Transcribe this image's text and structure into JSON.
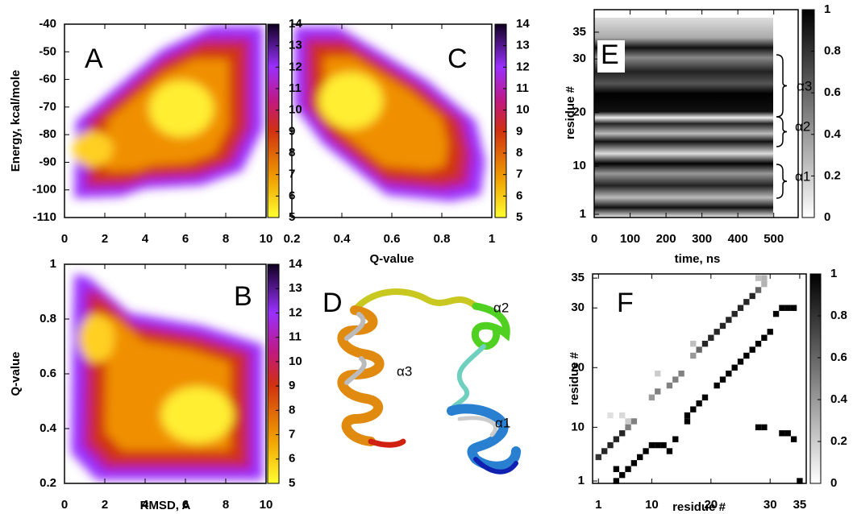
{
  "chart_data": [
    {
      "type": "heatmap",
      "label": "A",
      "ylabel": "Energy, kcal/mole",
      "xlim": [
        0,
        10
      ],
      "xticks": [
        0,
        2,
        4,
        6,
        8,
        10
      ],
      "ylim": [
        -110,
        -40
      ],
      "yticks": [
        -110,
        -100,
        -90,
        -80,
        -70,
        -60,
        -50,
        -40
      ],
      "colorbar": {
        "lim": [
          5,
          14
        ],
        "ticks": [
          5,
          6,
          7,
          8,
          9,
          10,
          11,
          12,
          13,
          14
        ]
      }
    },
    {
      "type": "heatmap",
      "label": "C",
      "xlabel": "Q-value",
      "xlim": [
        0.2,
        1
      ],
      "xticks": [
        0.2,
        0.4,
        0.6,
        0.8,
        1
      ],
      "ylim": [
        -110,
        -40
      ],
      "colorbar": {
        "lim": [
          5,
          14
        ],
        "ticks": [
          5,
          6,
          7,
          8,
          9,
          10,
          11,
          12,
          13,
          14
        ]
      }
    },
    {
      "type": "heatmap",
      "label": "E",
      "ylabel": "residue #",
      "xlabel": "time, ns",
      "xlim": [
        0,
        568
      ],
      "xticks": [
        0,
        100,
        200,
        300,
        400,
        500
      ],
      "ylim": [
        0.4,
        39.2
      ],
      "yticks": [
        1,
        10,
        20,
        30,
        35
      ],
      "colorbar": {
        "lim": [
          0,
          1
        ],
        "ticks": [
          0,
          0.2,
          0.4,
          0.6,
          0.8,
          1
        ]
      },
      "annotations": [
        "α3",
        "α2",
        "α1"
      ]
    },
    {
      "type": "heatmap",
      "label": "B",
      "ylabel": "Q-value",
      "xlabel": "RMSD, A",
      "xlim": [
        0,
        10
      ],
      "xticks": [
        0,
        2,
        4,
        6,
        8,
        10
      ],
      "ylim": [
        0.2,
        1
      ],
      "yticks": [
        0.2,
        0.4,
        0.6,
        0.8,
        1
      ],
      "colorbar": {
        "lim": [
          5,
          14
        ],
        "ticks": [
          5,
          6,
          7,
          8,
          9,
          10,
          11,
          12,
          13,
          14
        ]
      }
    },
    {
      "type": "image",
      "label": "D",
      "annotations": [
        "α2",
        "α3",
        "α1"
      ]
    },
    {
      "type": "heatmap",
      "label": "F",
      "ylabel": "residue #",
      "xlabel": "residue #",
      "xlim": [
        0,
        36.1
      ],
      "xticks": [
        1,
        10,
        20,
        30,
        35
      ],
      "ylim": [
        0.6,
        35.7
      ],
      "yticks": [
        1,
        10,
        20,
        30,
        35
      ],
      "colorbar": {
        "lim": [
          0,
          1
        ],
        "ticks": [
          0,
          0.2,
          0.4,
          0.6,
          0.8,
          1
        ]
      },
      "cells": {
        "x": [
          1,
          2,
          3,
          4,
          5,
          6,
          7,
          10,
          11,
          13,
          14,
          15,
          17,
          18,
          19,
          20,
          21,
          22,
          23,
          24,
          25,
          26,
          27,
          28,
          29,
          3,
          5,
          6,
          11,
          17,
          29,
          28,
          4,
          5,
          6,
          7,
          8,
          9,
          10,
          11,
          12,
          13,
          14,
          16,
          16,
          17,
          18,
          19,
          21,
          22,
          23,
          24,
          25,
          26,
          27,
          28,
          29,
          30,
          31,
          32,
          33,
          34,
          28,
          29,
          32,
          33,
          34,
          35,
          4
        ],
        "y": [
          5,
          6,
          7,
          8,
          9,
          10,
          11,
          15,
          16,
          17,
          18,
          19,
          22,
          23,
          24,
          25,
          26,
          27,
          28,
          29,
          30,
          31,
          32,
          33,
          34,
          12,
          12,
          11,
          19,
          24,
          35,
          35,
          1,
          2,
          3,
          4,
          5,
          6,
          7,
          7,
          7,
          6,
          8,
          11,
          12,
          13,
          14,
          15,
          17,
          18,
          19,
          20,
          21,
          22,
          23,
          24,
          25,
          26,
          29,
          30,
          30,
          30,
          10,
          10,
          9,
          9,
          8,
          1,
          3
        ],
        "values": [
          0.8,
          0.85,
          0.85,
          0.85,
          0.85,
          0.5,
          0.5,
          0.4,
          0.5,
          0.5,
          0.5,
          0.5,
          0.4,
          0.6,
          0.85,
          0.85,
          0.85,
          0.85,
          0.85,
          0.85,
          0.85,
          0.85,
          0.85,
          0.6,
          0.3,
          0.12,
          0.15,
          0.2,
          0.2,
          0.25,
          0.3,
          0.25,
          1,
          1,
          1,
          1,
          1,
          1,
          1,
          1,
          1,
          1,
          1,
          1,
          1,
          1,
          1,
          1,
          1,
          1,
          1,
          1,
          1,
          1,
          1,
          1,
          1,
          1,
          1,
          1,
          1,
          1,
          1,
          1,
          1,
          1,
          1,
          1,
          1
        ]
      }
    }
  ]
}
